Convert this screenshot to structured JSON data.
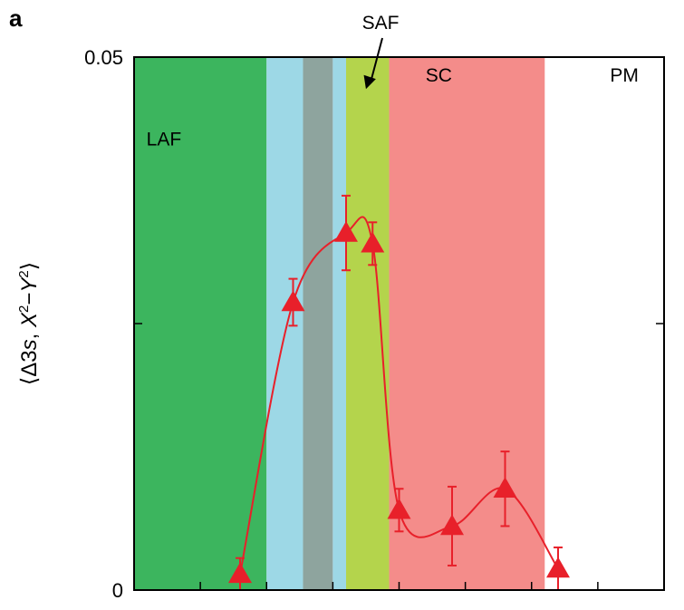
{
  "panel_letter": "a",
  "chart_data": {
    "type": "line",
    "title": "",
    "xlabel": "",
    "ylabel": "⟨Δ3s, X²−Y²⟩",
    "ylabel_parts": [
      "Δ3",
      "s",
      ", ",
      "X",
      "2",
      "−",
      "Y",
      "2"
    ],
    "xlim": [
      0,
      8
    ],
    "ylim": [
      0,
      0.05
    ],
    "yticks": [
      0,
      0.025,
      0.05
    ],
    "ytick_labels": [
      "0",
      "",
      "0.05"
    ],
    "xticks": [
      1,
      2,
      3,
      4,
      5,
      6,
      7
    ],
    "grid": false,
    "regions": [
      {
        "label": "LAF",
        "x0": 0.0,
        "x1": 2.0,
        "color": "#3cb55e"
      },
      {
        "label": "",
        "x0": 2.0,
        "x1": 2.55,
        "color": "#9dd8e6"
      },
      {
        "label": "",
        "x0": 2.55,
        "x1": 3.0,
        "color": "#8ea49e"
      },
      {
        "label": "",
        "x0": 3.0,
        "x1": 3.2,
        "color": "#9dd8e6"
      },
      {
        "label": "SAF",
        "x0": 3.2,
        "x1": 3.85,
        "color": "#b4d44c"
      },
      {
        "label": "SC",
        "x0": 3.85,
        "x1": 6.2,
        "color": "#f48c8a"
      },
      {
        "label": "PM",
        "x0": 6.2,
        "x1": 8.0,
        "color": "#ffffff"
      }
    ],
    "series": [
      {
        "color": "#e8202a",
        "marker": "triangle",
        "points": [
          {
            "x": 1.6,
            "y": 0.0015,
            "err": 0.0015
          },
          {
            "x": 2.4,
            "y": 0.027,
            "err": 0.0022
          },
          {
            "x": 3.2,
            "y": 0.0335,
            "err": 0.0035
          },
          {
            "x": 3.6,
            "y": 0.0325,
            "err": 0.002
          },
          {
            "x": 4.0,
            "y": 0.0075,
            "err": 0.002
          },
          {
            "x": 4.8,
            "y": 0.006,
            "err": 0.0037
          },
          {
            "x": 5.6,
            "y": 0.0095,
            "err": 0.0035
          },
          {
            "x": 6.4,
            "y": 0.002,
            "err": 0.002
          }
        ]
      }
    ],
    "annotations": [
      {
        "text": "SAF",
        "arrow_to": {
          "x": 3.5,
          "y": 0.047
        }
      }
    ]
  }
}
